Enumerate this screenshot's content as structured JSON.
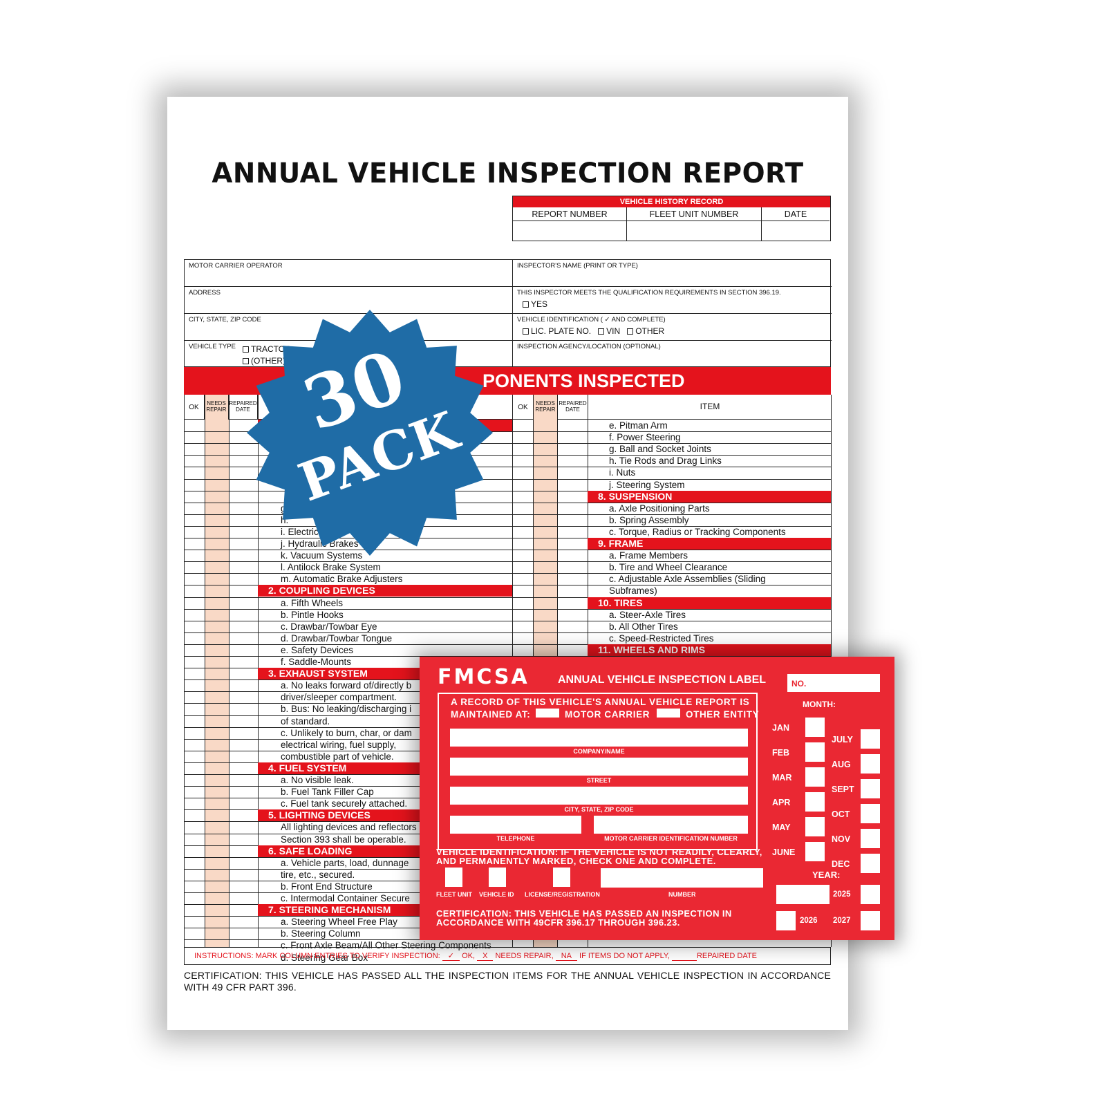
{
  "report": {
    "title": "ANNUAL VEHICLE INSPECTION REPORT",
    "history": {
      "header": "VEHICLE HISTORY RECORD",
      "columns": [
        "REPORT NUMBER",
        "FLEET UNIT NUMBER",
        "DATE"
      ]
    },
    "info": {
      "motor_carrier": "MOTOR CARRIER OPERATOR",
      "inspector_name": "INSPECTOR'S NAME (PRINT OR TYPE)",
      "address": "ADDRESS",
      "qualification": "THIS INSPECTOR MEETS THE QUALIFICATION REQUIREMENTS IN SECTION 396.19.",
      "yes": "YES",
      "city": "CITY, STATE, ZIP CODE",
      "vehicle_id": "VEHICLE IDENTIFICATION ( ✓ AND COMPLETE)",
      "vid_opts": [
        "LIC. PLATE NO.",
        "VIN",
        "OTHER"
      ],
      "vehicle_type": "VEHICLE TYPE",
      "vtype_opts": [
        "TRACTOR",
        "(OTHER)"
      ],
      "agency": "INSPECTION AGENCY/LOCATION (OPTIONAL)"
    },
    "components_header": "PONENTS INSPECTED",
    "column_headers": {
      "ok": "OK",
      "needs_repair": "NEEDS REPAIR",
      "repaired_date": "REPAIRED DATE",
      "item": "ITEM"
    },
    "left_items": [
      {
        "t": "g."
      },
      {
        "t": "h."
      },
      {
        "t": "i.   Electric"
      },
      {
        "t": "j.   Hydraulic Brakes"
      },
      {
        "t": "k.  Vacuum Systems"
      },
      {
        "t": "l.   Antilock Brake System"
      },
      {
        "t": "m. Automatic Brake Adjusters"
      },
      {
        "s": "2.  COUPLING DEVICES"
      },
      {
        "t": "a.  Fifth Wheels"
      },
      {
        "t": "b.  Pintle Hooks"
      },
      {
        "t": "c.  Drawbar/Towbar Eye"
      },
      {
        "t": "d.  Drawbar/Towbar Tongue"
      },
      {
        "t": "e.  Safety Devices"
      },
      {
        "t": "f.   Saddle-Mounts"
      },
      {
        "s": "3.  EXHAUST SYSTEM"
      },
      {
        "t": "a.  No leaks forward of/directly b"
      },
      {
        "t": "     driver/sleeper compartment."
      },
      {
        "t": "b.  Bus: No leaking/discharging i"
      },
      {
        "t": "     of standard."
      },
      {
        "t": "c.  Unlikely to burn, char, or dam"
      },
      {
        "t": "     electrical wiring, fuel supply,"
      },
      {
        "t": "     combustible part of vehicle."
      },
      {
        "s": "4.  FUEL SYSTEM"
      },
      {
        "t": "a.  No visible leak."
      },
      {
        "t": "b.  Fuel Tank Filler Cap"
      },
      {
        "t": "c.  Fuel tank securely attached."
      },
      {
        "s": "5.  LIGHTING DEVICES"
      },
      {
        "t": "     All lighting devices and reflectors"
      },
      {
        "t": "     Section 393 shall be operable."
      },
      {
        "s": "6.  SAFE LOADING"
      },
      {
        "t": "a.  Vehicle parts, load, dunnage"
      },
      {
        "t": "     tire, etc., secured."
      },
      {
        "t": "b.  Front End Structure"
      },
      {
        "t": "c.  Intermodal Container Secure"
      },
      {
        "s": "7.  STEERING MECHANISM"
      },
      {
        "t": "a.  Steering Wheel Free Play"
      },
      {
        "t": "b.  Steering Column"
      },
      {
        "t": "c.  Front Axle Beam/All Other Steering Components"
      },
      {
        "t": "d.  Steering Gear Box"
      }
    ],
    "right_items": [
      {
        "t": "e.  Pitman Arm"
      },
      {
        "t": "f.   Power Steering"
      },
      {
        "t": "g.  Ball and Socket Joints"
      },
      {
        "t": "h.  Tie Rods and Drag Links"
      },
      {
        "t": "i.   Nuts"
      },
      {
        "t": "j.   Steering System"
      },
      {
        "s": "8.  SUSPENSION"
      },
      {
        "t": "a.  Axle Positioning Parts"
      },
      {
        "t": "b.  Spring Assembly"
      },
      {
        "t": "c.  Torque, Radius or Tracking Components"
      },
      {
        "s": "9.  FRAME"
      },
      {
        "t": "a.  Frame Members"
      },
      {
        "t": "b.  Tire and Wheel Clearance"
      },
      {
        "t": "c.  Adjustable Axle Assemblies (Sliding"
      },
      {
        "t": "     Subframes)"
      },
      {
        "s": "10. TIRES"
      },
      {
        "t": "a.  Steer-Axle Tires"
      },
      {
        "t": "b.  All Other Tires"
      },
      {
        "t": "c.  Speed-Restricted Tires"
      },
      {
        "s": "11. WHEELS AND RIMS"
      }
    ],
    "instructions": {
      "lead": "INSTRUCTIONS: MARK COLUMN ENTRIES TO VERIFY INSPECTION:",
      "check": "✓",
      "ok": "OK,",
      "x": "X",
      "needs": "NEEDS REPAIR,",
      "na": "NA",
      "na_text": "IF ITEMS DO NOT APPLY,",
      "repaired": "REPAIRED DATE"
    },
    "certification": "CERTIFICATION: THIS VEHICLE HAS PASSED ALL THE INSPECTION ITEMS FOR THE ANNUAL VEHICLE INSPECTION IN ACCORDANCE WITH 49 CFR PART 396."
  },
  "badge": {
    "number": "30",
    "word": "PACK",
    "color": "#1f6ca6"
  },
  "label": {
    "brand": "FMCSA",
    "title": "ANNUAL VEHICLE INSPECTION LABEL",
    "no": "NO.",
    "record_line1": "A RECORD OF THIS VEHICLE'S ANNUAL VEHICLE REPORT IS",
    "maintained_at": "MAINTAINED AT:",
    "motor_carrier": "MOTOR CARRIER",
    "other_entity": "OTHER ENTITY",
    "company": "COMPANY/NAME",
    "street": "STREET",
    "city": "CITY, STATE, ZIP CODE",
    "telephone": "TELEPHONE",
    "mcid": "MOTOR CARRIER IDENTIFICATION NUMBER",
    "vid_line1": "VEHICLE IDENTIFICATION: IF THE VEHICLE IS NOT READILY, CLEARLY,",
    "vid_line2": "AND PERMANENTLY MARKED, CHECK ONE AND COMPLETE.",
    "fleet_unit": "FLEET UNIT",
    "vehicle_id": "VEHICLE ID",
    "license": "LICENSE/REGISTRATION",
    "number": "NUMBER",
    "cert_line1": "CERTIFICATION: THIS VEHICLE HAS PASSED AN INSPECTION IN",
    "cert_line2": "ACCORDANCE WITH 49CFR 396.17 THROUGH 396.23.",
    "month": "MONTH:",
    "months_left": [
      "JAN",
      "FEB",
      "MAR",
      "APR",
      "MAY",
      "JUNE"
    ],
    "months_right": [
      "JULY",
      "AUG",
      "SEPT",
      "OCT",
      "NOV",
      "DEC"
    ],
    "year": "YEAR:",
    "years": [
      "2025",
      "2026",
      "2027"
    ],
    "color": "#ea2833"
  }
}
